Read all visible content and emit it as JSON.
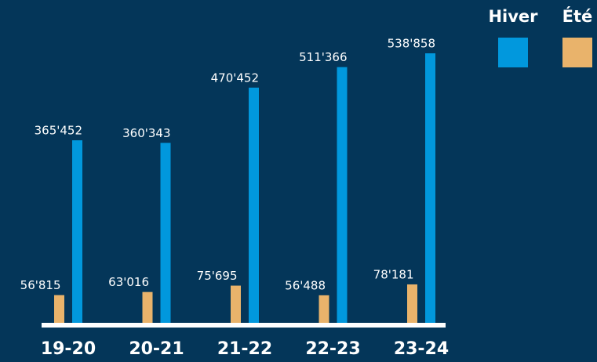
{
  "chart_data": {
    "type": "bar",
    "categories": [
      "19-20",
      "20-21",
      "21-22",
      "22-23",
      "23-24"
    ],
    "series": [
      {
        "name": "Hiver",
        "color": "#0198dd",
        "values": [
          365452,
          360343,
          470452,
          511366,
          538858
        ],
        "value_labels": [
          "365'452",
          "360'343",
          "470'452",
          "511'366",
          "538'858"
        ]
      },
      {
        "name": "Été",
        "color": "#e9b36b",
        "values": [
          56815,
          63016,
          75695,
          56488,
          78181
        ],
        "value_labels": [
          "56'815",
          "63'016",
          "75'695",
          "56'488",
          "78'181"
        ]
      }
    ],
    "ylim": [
      0,
      560000
    ]
  }
}
